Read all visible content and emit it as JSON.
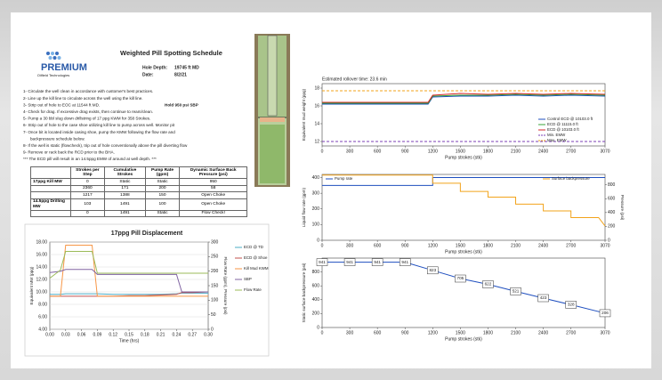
{
  "header": {
    "logo": "PREMIUM",
    "logo_sub": "Oilfield Technologies",
    "title": "Weighted Pill Spotting Schedule",
    "hole_depth_label": "Hole Depth:",
    "hole_depth": "19745 ft MD",
    "date_label": "Date:",
    "date": "8/2/21"
  },
  "steps": [
    "1- Circulate the well clean in accordance with customer's best practices.",
    "2- Line up the kill line to circulate across the well using the kill line.",
    "3- Strip out of hole to EOC at 11544 ft MD.",
    "4- Check for drag. If excessive drag exists, then continue to ream/clean.",
    "5- Pump a 30 bbl slug down drillstring of 17 ppg KWM for 358 Strokes.",
    "6- Strip out of hole to the case shoe utilizing kill line to pump across well. Monitor pit",
    "7- Once bit is located inside casing shoe, pump the KMW following the flow rate and",
    "backpressure schedule below.",
    "8- If the well is static (flowcheck), trip out of hole conventionally above the pill diverting flow",
    "9- Remove or rack back the RCD prior to the BHA."
  ],
  "hold_note": "Hold 950 psi SBP",
  "note": "*** The ECD pill will result in an 14.5ppg EMW of around at well depth. ***",
  "table": {
    "columns": [
      "Strokes per Step",
      "Cumulative Strokes",
      "Pump Rate (gpm)",
      "Dynamic Surface Back Pressure (psi)"
    ],
    "rows": [
      [
        "17ppg Kill MW",
        "0",
        "Static",
        "Static",
        "950"
      ],
      [
        null,
        "2360",
        "171",
        "200",
        "58"
      ],
      [
        null,
        "1217",
        "1388",
        "150",
        "Open Choke"
      ],
      [
        "14.5ppg Drilling MW",
        "103",
        "1491",
        "100",
        "Open Choke"
      ],
      [
        null,
        "0",
        "1491",
        "Static",
        "Flow Check!"
      ]
    ]
  },
  "charts": [
    {
      "type": "line",
      "title": "17ppg Pill Displacement",
      "xlabel": "Time (hrs)",
      "ylabel": "Equivalent MW (ppg)",
      "y2label": "Flow Rate (gpm), Pressure (psi)",
      "x": [
        0,
        0.02,
        0.03,
        0.06,
        0.08,
        0.09,
        0.12,
        0.15,
        0.18,
        0.21,
        0.24,
        0.25,
        0.27,
        0.3
      ],
      "xlim": [
        0,
        0.3
      ],
      "xticks": [
        {
          "value": 0,
          "label": "0.00"
        },
        {
          "value": 0.03,
          "label": "0.03"
        },
        {
          "value": 0.06,
          "label": "0.06"
        },
        {
          "value": 0.09,
          "label": "0.09"
        },
        {
          "value": 0.12,
          "label": "0.12"
        },
        {
          "value": 0.15,
          "label": "0.15"
        },
        {
          "value": 0.18,
          "label": "0.18"
        },
        {
          "value": 0.21,
          "label": "0.21"
        },
        {
          "value": 0.24,
          "label": "0.24"
        },
        {
          "value": 0.27,
          "label": "0.27"
        },
        {
          "value": 0.3,
          "label": "0.30"
        }
      ],
      "ylim": [
        4,
        18
      ],
      "yticks": [
        {
          "value": 4,
          "label": "4.00"
        },
        {
          "value": 6,
          "label": "6.00"
        },
        {
          "value": 8,
          "label": "8.00"
        },
        {
          "value": 10,
          "label": "10.00"
        },
        {
          "value": 12,
          "label": "12.00"
        },
        {
          "value": 14,
          "label": "14.00"
        },
        {
          "value": 16,
          "label": "16.00"
        },
        {
          "value": 18,
          "label": "18.00"
        }
      ],
      "y2lim": [
        0,
        300
      ],
      "y2ticks": [
        0,
        50,
        100,
        150,
        200,
        250,
        300
      ],
      "grid": true,
      "legend": "right",
      "series": [
        {
          "name": "ECD @ TD",
          "color": "#4bacc6",
          "values": [
            9.6,
            9.6,
            9.7,
            9.7,
            9.7,
            9.7,
            9.6,
            9.6,
            9.6,
            9.6,
            9.7,
            9.8,
            9.8,
            9.8
          ]
        },
        {
          "name": "ECD @ Shoe",
          "color": "#c0504d",
          "values": [
            9.3,
            9.3,
            9.3,
            9.3,
            9.3,
            9.3,
            9.3,
            9.4,
            9.4,
            9.5,
            9.6,
            9.9,
            9.9,
            10.0
          ]
        },
        {
          "name": "Kill Mud KWM",
          "color": "#f79646",
          "values": [
            9.3,
            9.3,
            17.5,
            17.5,
            17.5,
            9.3,
            9.3,
            9.3,
            9.3,
            9.3,
            9.3,
            9.3,
            9.3,
            9.3
          ]
        },
        {
          "name": "SBP",
          "color": "#8064a2",
          "values": [
            13.1,
            13.3,
            13.6,
            13.6,
            13.6,
            12.8,
            12.8,
            12.8,
            12.8,
            12.8,
            12.8,
            10.0,
            10.0,
            10.0
          ]
        },
        {
          "name": "Flow Rate",
          "color": "#9bbb59",
          "values": [
            12.2,
            13.5,
            16.5,
            16.5,
            16.5,
            13.0,
            13.0,
            13.0,
            13.0,
            13.0,
            13.0,
            13.0,
            13.0,
            13.0
          ]
        }
      ]
    },
    {
      "type": "line",
      "annotation": "Estimated rollover time: 23.6 min",
      "xlabel": "Pump strokes (stk)",
      "ylabel": "Equivalent mud weight (ppg)",
      "x": [
        0,
        300,
        600,
        900,
        1150,
        1200,
        1500,
        1800,
        2100,
        2400,
        2700,
        3070
      ],
      "xlim": [
        0,
        3070
      ],
      "xticks": [
        0,
        300,
        600,
        900,
        1200,
        1500,
        1800,
        2100,
        2400,
        2700,
        3070
      ],
      "ylim": [
        11.5,
        18.5
      ],
      "yticks": [
        12,
        14,
        16,
        18
      ],
      "grid": false,
      "legend": "lower right",
      "series": [
        {
          "name": "Control ECD @ 10103.0 ft",
          "color": "#1f4fbf",
          "values": [
            16.2,
            16.2,
            16.2,
            16.2,
            16.2,
            17.0,
            17.1,
            17.1,
            17.2,
            17.1,
            17.2,
            17.1
          ]
        },
        {
          "name": "ECD @ 11115.0 ft",
          "color": "#3aa63a",
          "values": [
            16.3,
            16.3,
            16.3,
            16.3,
            16.3,
            17.1,
            17.2,
            17.2,
            17.3,
            17.2,
            17.3,
            17.2
          ]
        },
        {
          "name": "ECD @ 10103.0 ft",
          "color": "#d62728",
          "values": [
            16.4,
            16.4,
            16.4,
            16.4,
            16.4,
            17.2,
            17.4,
            17.3,
            17.4,
            17.3,
            17.4,
            17.3
          ]
        },
        {
          "name": "Min. EMW",
          "color": "#7b3fb5",
          "dash": true,
          "values": [
            12.0,
            12.0,
            12.0,
            12.0,
            12.0,
            12.0,
            12.0,
            12.0,
            12.0,
            12.0,
            12.0,
            12.0
          ]
        },
        {
          "name": "Max. EMW",
          "color": "#f2a31b",
          "dash": true,
          "values": [
            17.7,
            17.7,
            17.7,
            17.7,
            17.7,
            17.7,
            17.7,
            17.7,
            17.7,
            17.7,
            17.7,
            17.7
          ]
        }
      ]
    },
    {
      "type": "line",
      "xlabel": "Pump strokes (stk)",
      "ylabel": "Liquid flow rate (gpm)",
      "y2label": "Pressure (psi)",
      "x": [
        0,
        1200,
        1200,
        1500,
        1500,
        1800,
        1800,
        2100,
        2100,
        2400,
        2400,
        2700,
        2700,
        3000,
        3070
      ],
      "xlim": [
        0,
        3070
      ],
      "xticks": [
        0,
        300,
        600,
        900,
        1200,
        1500,
        1800,
        2100,
        2400,
        2700,
        3070
      ],
      "ylim": [
        0,
        420
      ],
      "yticks": [
        0,
        100,
        200,
        300,
        400
      ],
      "y2lim": [
        0,
        950
      ],
      "y2ticks": [
        0,
        200,
        400,
        600,
        800
      ],
      "grid": false,
      "legend": "top",
      "series": [
        {
          "name": "Pump rate",
          "color": "#1f4fbf",
          "values": [
            350,
            350,
            400,
            400,
            400,
            400,
            400,
            400,
            400,
            400,
            400,
            400,
            400,
            400,
            400
          ]
        },
        {
          "name": "Surface backpressure",
          "color": "#f2a31b",
          "axis": "y2",
          "values": [
            941,
            941,
            823,
            823,
            705,
            705,
            622,
            622,
            521,
            521,
            423,
            423,
            328,
            328,
            206
          ]
        }
      ]
    },
    {
      "type": "line",
      "xlabel": "Pump strokes (stk)",
      "ylabel": "Static surface backpressure (psi)",
      "x": [
        0,
        300,
        600,
        900,
        1200,
        1500,
        1800,
        2100,
        2400,
        2700,
        3070
      ],
      "xlim": [
        0,
        3070
      ],
      "xticks": [
        0,
        300,
        600,
        900,
        1200,
        1500,
        1800,
        2100,
        2400,
        2700,
        3070
      ],
      "ylim": [
        0,
        1000
      ],
      "yticks": [
        0,
        200,
        400,
        600,
        800
      ],
      "grid": false,
      "data_labels": true,
      "series": [
        {
          "name": "Static surface backpressure",
          "color": "#1f4fbf",
          "values": [
            941,
            941,
            941,
            941,
            823,
            705,
            622,
            521,
            423,
            328,
            206
          ]
        }
      ]
    }
  ]
}
